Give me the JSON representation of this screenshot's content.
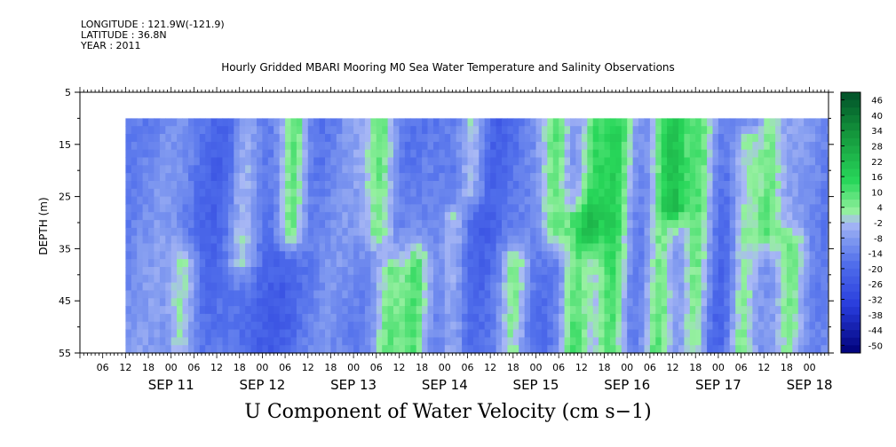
{
  "header": {
    "longitude": "LONGITUDE : 121.9W(-121.9)",
    "latitude": "LATITUDE : 36.8N",
    "year": "YEAR : 2011"
  },
  "chart_data": {
    "type": "heatmap",
    "title": "Hourly Gridded MBARI Mooring M0 Sea Water Temperature and Salinity Observations",
    "xlabel": "U Component of Water Velocity (cm s−1)",
    "ylabel": "DEPTH (m)",
    "y_ticks": [
      5,
      15,
      25,
      35,
      45,
      55
    ],
    "ylim": [
      55,
      5
    ],
    "y_data_range": [
      10,
      55
    ],
    "x_axis": {
      "start": "SEP 10 00:00",
      "end": "SEP 18 05:00",
      "data_start": "SEP 10 12:00",
      "hour_tick_labels": [
        "06",
        "12",
        "18",
        "00",
        "06",
        "12",
        "18",
        "00",
        "06",
        "12",
        "18",
        "00",
        "06",
        "12",
        "18",
        "00",
        "06",
        "12",
        "18",
        "00",
        "06",
        "12",
        "18",
        "00",
        "06",
        "12",
        "18",
        "00",
        "06",
        "12",
        "18",
        "00"
      ],
      "day_labels": [
        "SEP 11",
        "SEP 12",
        "SEP 13",
        "SEP 14",
        "SEP 15",
        "SEP 16",
        "SEP 17",
        "SEP 18"
      ]
    },
    "colorbar": {
      "levels": [
        "46",
        "40",
        "34",
        "28",
        "22",
        "16",
        "10",
        "4",
        "-2",
        "-8",
        "-14",
        "-20",
        "-26",
        "-32",
        "-38",
        "-44",
        "-50"
      ],
      "min": -50,
      "max": 50
    },
    "features": [
      {
        "time": "SEP 11 03:00",
        "depth": [
          38,
          55
        ],
        "u": 4
      },
      {
        "time": "SEP 11 18:00",
        "depth": [
          10,
          35
        ],
        "u": 2
      },
      {
        "time": "SEP 12 07:00",
        "depth": [
          10,
          30
        ],
        "u": 14
      },
      {
        "time": "SEP 13 06:00",
        "depth": [
          10,
          30
        ],
        "u": 6
      },
      {
        "time": "SEP 13 09:00",
        "depth": [
          40,
          55
        ],
        "u": 4
      },
      {
        "time": "SEP 13 16:00",
        "depth": [
          38,
          55
        ],
        "u": 6
      },
      {
        "time": "SEP 14 02:00",
        "depth": [
          30,
          55
        ],
        "u": 4
      },
      {
        "time": "SEP 14 06:00",
        "depth": [
          10,
          22
        ],
        "u": 6
      },
      {
        "time": "SEP 14 18:00",
        "depth": [
          38,
          55
        ],
        "u": 6
      },
      {
        "time": "SEP 15 04:00",
        "depth": [
          10,
          30
        ],
        "u": 8
      },
      {
        "time": "SEP 15 10:00",
        "depth": [
          30,
          55
        ],
        "u": 4
      },
      {
        "time": "SEP 15 14:00",
        "depth": [
          10,
          30
        ],
        "u": 8
      },
      {
        "time": "SEP 15 20:00",
        "depth": [
          10,
          55
        ],
        "u": 8
      },
      {
        "time": "SEP 16 08:00",
        "depth": [
          10,
          55
        ],
        "u": 10
      },
      {
        "time": "SEP 16 12:00",
        "depth": [
          10,
          25
        ],
        "u": 16
      },
      {
        "time": "SEP 16 18:00",
        "depth": [
          10,
          55
        ],
        "u": 10
      },
      {
        "time": "SEP 17 06:00",
        "depth": [
          15,
          55
        ],
        "u": 8
      },
      {
        "time": "SEP 17 12:00",
        "depth": [
          10,
          30
        ],
        "u": 6
      },
      {
        "time": "SEP 17 19:00",
        "depth": [
          35,
          55
        ],
        "u": 4
      }
    ]
  }
}
